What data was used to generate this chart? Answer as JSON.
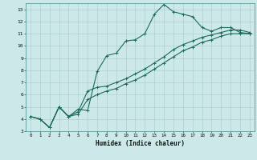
{
  "xlabel": "Humidex (Indice chaleur)",
  "bg_color": "#cde8e8",
  "line_color": "#1a6b5a",
  "grid_color": "#a8cccc",
  "xlim": [
    -0.5,
    23.5
  ],
  "ylim": [
    3,
    13.5
  ],
  "xticks": [
    0,
    1,
    2,
    3,
    4,
    5,
    6,
    7,
    8,
    9,
    10,
    11,
    12,
    13,
    14,
    15,
    16,
    17,
    18,
    19,
    20,
    21,
    22,
    23
  ],
  "yticks": [
    3,
    4,
    5,
    6,
    7,
    8,
    9,
    10,
    11,
    12,
    13
  ],
  "line1_x": [
    0,
    1,
    2,
    3,
    4,
    5,
    6,
    7,
    8,
    9,
    10,
    11,
    12,
    13,
    14,
    15,
    16,
    17,
    18,
    19,
    20,
    21,
    22,
    23
  ],
  "line1_y": [
    4.2,
    4.0,
    3.3,
    5.0,
    4.2,
    4.8,
    4.7,
    7.9,
    9.2,
    9.4,
    10.4,
    10.5,
    11.0,
    12.6,
    13.4,
    12.8,
    12.6,
    12.4,
    11.5,
    11.2,
    11.5,
    11.5,
    11.1,
    11.0
  ],
  "line2_x": [
    0,
    1,
    2,
    3,
    4,
    5,
    6,
    7,
    8,
    9,
    10,
    11,
    12,
    13,
    14,
    15,
    16,
    17,
    18,
    19,
    20,
    21,
    22,
    23
  ],
  "line2_y": [
    4.2,
    4.0,
    3.3,
    5.0,
    4.2,
    4.4,
    5.6,
    6.0,
    6.3,
    6.5,
    6.9,
    7.2,
    7.6,
    8.1,
    8.6,
    9.1,
    9.6,
    9.9,
    10.3,
    10.5,
    10.8,
    11.0,
    11.0,
    11.0
  ],
  "line3_x": [
    0,
    1,
    2,
    3,
    4,
    5,
    6,
    7,
    8,
    9,
    10,
    11,
    12,
    13,
    14,
    15,
    16,
    17,
    18,
    19,
    20,
    21,
    22,
    23
  ],
  "line3_y": [
    4.2,
    4.0,
    3.3,
    5.0,
    4.2,
    4.6,
    6.3,
    6.6,
    6.7,
    7.0,
    7.3,
    7.7,
    8.1,
    8.6,
    9.1,
    9.7,
    10.1,
    10.4,
    10.7,
    10.9,
    11.1,
    11.3,
    11.3,
    11.1
  ]
}
